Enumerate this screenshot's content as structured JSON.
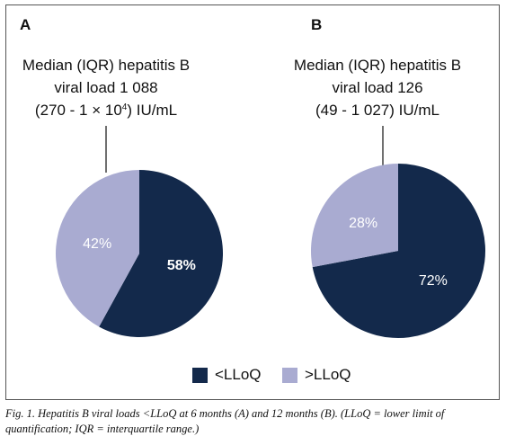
{
  "panels": {
    "a": {
      "label": "A",
      "median_line1": "Median (IQR) hepatitis B",
      "median_line2": "viral load 1 088",
      "median_line3_pre": "(270 - 1 × 10",
      "median_line3_sup": "4",
      "median_line3_post": ") IU/mL"
    },
    "b": {
      "label": "B",
      "median_line1": "Median (IQR) hepatitis B",
      "median_line2": "viral load 126",
      "median_line3_pre": "(49 - 1 027) IU/mL",
      "median_line3_sup": "",
      "median_line3_post": ""
    }
  },
  "chart_data": [
    {
      "type": "pie",
      "panel": "A",
      "slices": [
        {
          "name": "<LLoQ",
          "value": 58,
          "label": "58%",
          "color": "#13294b"
        },
        {
          "name": ">LLoQ",
          "value": 42,
          "label": "42%",
          "color": "#a9abd1"
        }
      ]
    },
    {
      "type": "pie",
      "panel": "B",
      "slices": [
        {
          "name": "<LLoQ",
          "value": 72,
          "label": "72%",
          "color": "#13294b"
        },
        {
          "name": ">LLoQ",
          "value": 28,
          "label": "28%",
          "color": "#a9abd1"
        }
      ]
    }
  ],
  "legend": {
    "items": [
      {
        "label": "<LLoQ",
        "color": "#13294b"
      },
      {
        "label": ">LLoQ",
        "color": "#a9abd1"
      }
    ]
  },
  "caption": "Fig. 1. Hepatitis B viral loads <LLoQ at 6 months (A) and 12 months (B). (LLoQ = lower limit of quantification; IQR = interquartile range.)"
}
